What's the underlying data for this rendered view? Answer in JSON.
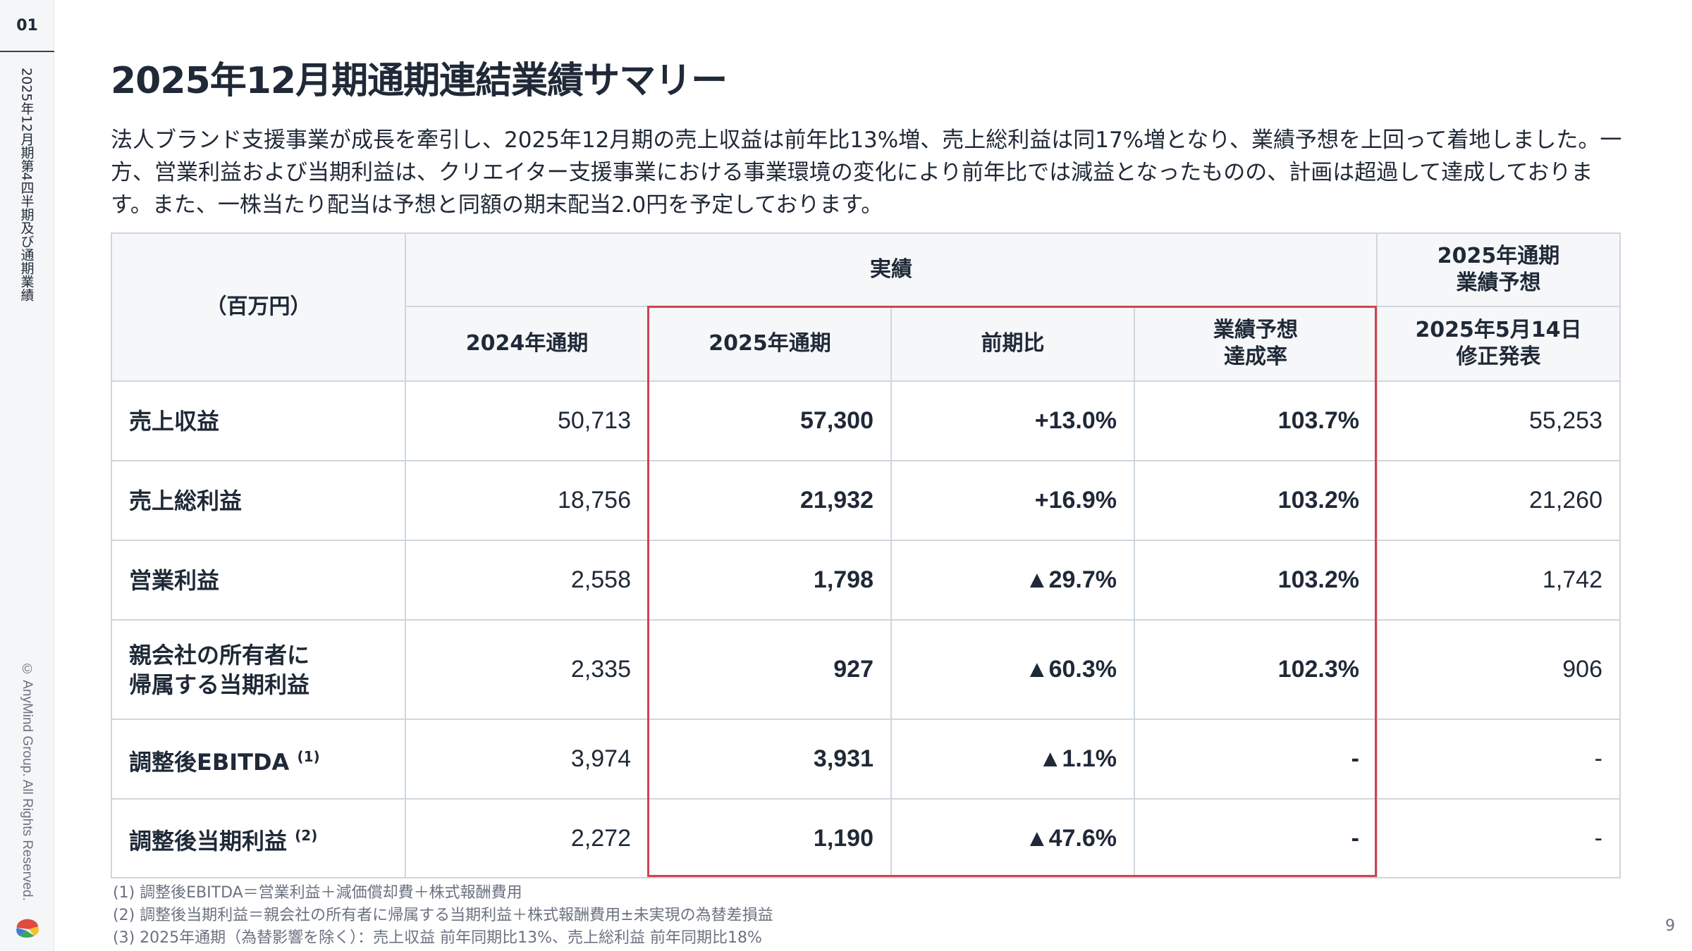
{
  "sidebar": {
    "section": "01",
    "vertical_title": "2025年12月期第4四半期及び通期業績",
    "copyright": "© AnyMind Group. All Rights Reserved."
  },
  "title": "2025年12月期通期連結業績サマリー",
  "lead": "法人ブランド支援事業が成長を牽引し、2025年12月期の売上収益は前年比13%増、売上総利益は同17%増となり、業績予想を上回って着地しました。一方、営業利益および当期利益は、クリエイター支援事業における事業環境の変化により前年比では減益となったものの、計画は超過して達成しております。また、一株当たり配当は予想と同額の期末配当2.0円を予定しております。",
  "table": {
    "unit": "（百万円）",
    "actual": "実績",
    "forecast": [
      "2025年通期",
      "業績予想"
    ],
    "cols": [
      "2024年通期",
      "2025年通期",
      "前期比",
      [
        "業績予想",
        "達成率"
      ],
      [
        "2025年5月14日",
        "修正発表"
      ]
    ],
    "rows": [
      {
        "label": [
          "売上収益"
        ],
        "sup": "",
        "v": [
          "50,713",
          "57,300",
          "+13.0%",
          "103.7%",
          "55,253"
        ]
      },
      {
        "label": [
          "売上総利益"
        ],
        "sup": "",
        "v": [
          "18,756",
          "21,932",
          "+16.9%",
          "103.2%",
          "21,260"
        ]
      },
      {
        "label": [
          "営業利益"
        ],
        "sup": "",
        "v": [
          "2,558",
          "1,798",
          "▲29.7%",
          "103.2%",
          "1,742"
        ]
      },
      {
        "label": [
          "親会社の所有者に",
          "帰属する当期利益"
        ],
        "sup": "",
        "v": [
          "2,335",
          "927",
          "▲60.3%",
          "102.3%",
          "906"
        ]
      },
      {
        "label": [
          "調整後EBITDA"
        ],
        "sup": "(1)",
        "v": [
          "3,974",
          "3,931",
          "▲1.1%",
          "-",
          "-"
        ]
      },
      {
        "label": [
          "調整後当期利益"
        ],
        "sup": "(2)",
        "v": [
          "2,272",
          "1,190",
          "▲47.6%",
          "-",
          "-"
        ]
      }
    ]
  },
  "notes": [
    "(1) 調整後EBITDA＝営業利益＋減価償却費＋株式報酬費用",
    "(2) 調整後当期利益＝親会社の所有者に帰属する当期利益＋株式報酬費用±未実現の為替差損益",
    "(3) 2025年通期（為替影響を除く）：売上収益 前年同期比13%、売上総利益 前年同期比18%"
  ],
  "page_number": "9",
  "colors": {
    "highlight_border": "#d0434f",
    "header_bg": "#f5f7f9"
  }
}
